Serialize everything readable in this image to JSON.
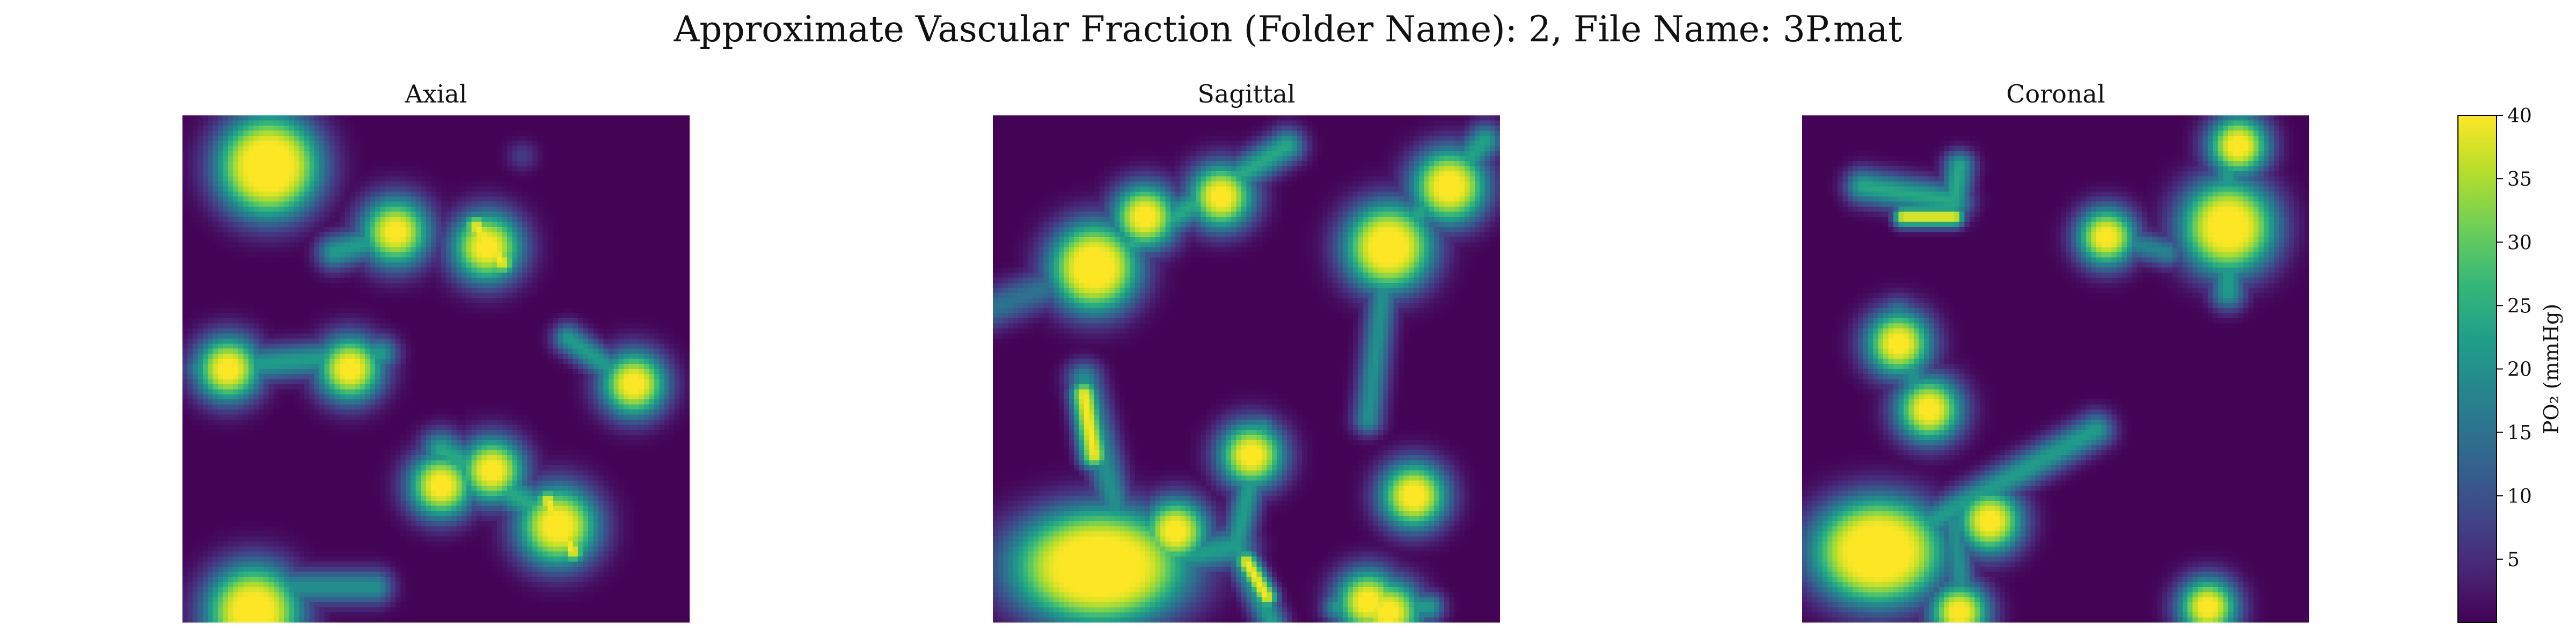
{
  "title": "Approximate Vascular Fraction (Folder Name): 2, File Name: 3P.mat",
  "colormap": {
    "name": "viridis",
    "stops": [
      "#440154",
      "#482878",
      "#3e4a89",
      "#31688e",
      "#26828e",
      "#1f9e89",
      "#35b779",
      "#6ece58",
      "#b5de2b",
      "#fde725"
    ]
  },
  "chart_data": [
    {
      "type": "heatmap",
      "title": "Axial",
      "value_range": [
        0,
        40
      ],
      "background_value": 0.3,
      "vessels": [
        {
          "x": 0.17,
          "y": 0.1,
          "r": 0.04,
          "peak": 40,
          "spread": 0.07
        },
        {
          "x": 0.67,
          "y": 0.08,
          "r": 0.0,
          "peak": 7,
          "spread": 0.03
        },
        {
          "x": 0.42,
          "y": 0.23,
          "r": 0.01,
          "peak": 40,
          "spread": 0.06
        },
        {
          "x": 0.6,
          "y": 0.26,
          "r": 0.012,
          "peak": 40,
          "spread": 0.06
        },
        {
          "x": 0.09,
          "y": 0.5,
          "r": 0.012,
          "peak": 40,
          "spread": 0.055
        },
        {
          "x": 0.33,
          "y": 0.5,
          "r": 0.012,
          "peak": 40,
          "spread": 0.055
        },
        {
          "x": 0.89,
          "y": 0.53,
          "r": 0.012,
          "peak": 40,
          "spread": 0.055
        },
        {
          "x": 0.51,
          "y": 0.73,
          "r": 0.012,
          "peak": 40,
          "spread": 0.055
        },
        {
          "x": 0.61,
          "y": 0.7,
          "r": 0.012,
          "peak": 40,
          "spread": 0.055
        },
        {
          "x": 0.74,
          "y": 0.81,
          "r": 0.018,
          "peak": 40,
          "spread": 0.065
        },
        {
          "x": 0.14,
          "y": 0.98,
          "r": 0.03,
          "peak": 40,
          "spread": 0.07
        }
      ],
      "segments": [
        {
          "x1": 0.3,
          "y1": 0.27,
          "x2": 0.44,
          "y2": 0.23,
          "peak": 22,
          "spread": 0.035
        },
        {
          "x1": 0.58,
          "y1": 0.22,
          "x2": 0.63,
          "y2": 0.29,
          "peak": 40,
          "spread": 0.028
        },
        {
          "x1": 0.04,
          "y1": 0.5,
          "x2": 0.39,
          "y2": 0.47,
          "peak": 22,
          "spread": 0.035
        },
        {
          "x1": 0.76,
          "y1": 0.44,
          "x2": 0.9,
          "y2": 0.54,
          "peak": 22,
          "spread": 0.03
        },
        {
          "x1": 0.51,
          "y1": 0.66,
          "x2": 0.74,
          "y2": 0.8,
          "peak": 24,
          "spread": 0.04
        },
        {
          "x1": 0.72,
          "y1": 0.76,
          "x2": 0.77,
          "y2": 0.86,
          "peak": 40,
          "spread": 0.025
        },
        {
          "x1": 0.1,
          "y1": 0.93,
          "x2": 0.38,
          "y2": 0.93,
          "peak": 20,
          "spread": 0.035
        }
      ]
    },
    {
      "type": "heatmap",
      "title": "Sagittal",
      "value_range": [
        0,
        40
      ],
      "background_value": 0.3,
      "vessels": [
        {
          "x": 0.2,
          "y": 0.3,
          "r": 0.03,
          "peak": 40,
          "spread": 0.065
        },
        {
          "x": 0.3,
          "y": 0.2,
          "r": 0.012,
          "peak": 40,
          "spread": 0.055
        },
        {
          "x": 0.45,
          "y": 0.16,
          "r": 0.012,
          "peak": 40,
          "spread": 0.055
        },
        {
          "x": 0.78,
          "y": 0.26,
          "r": 0.028,
          "peak": 40,
          "spread": 0.065
        },
        {
          "x": 0.9,
          "y": 0.14,
          "r": 0.018,
          "peak": 40,
          "spread": 0.06
        },
        {
          "x": 0.51,
          "y": 0.67,
          "r": 0.012,
          "peak": 40,
          "spread": 0.055
        },
        {
          "x": 0.36,
          "y": 0.82,
          "r": 0.012,
          "peak": 40,
          "spread": 0.055
        },
        {
          "x": 0.83,
          "y": 0.75,
          "r": 0.014,
          "peak": 40,
          "spread": 0.055
        },
        {
          "x": 0.74,
          "y": 0.96,
          "r": 0.012,
          "peak": 40,
          "spread": 0.055
        },
        {
          "x": 0.78,
          "y": 0.98,
          "r": 0.012,
          "peak": 40,
          "spread": 0.055
        }
      ],
      "ellipses": [
        {
          "x": 0.21,
          "y": 0.89,
          "rx": 0.075,
          "ry": 0.05,
          "peak": 40,
          "spread": 0.075
        }
      ],
      "segments": [
        {
          "x1": 0.2,
          "y1": 0.3,
          "x2": 0.58,
          "y2": 0.06,
          "peak": 24,
          "spread": 0.035
        },
        {
          "x1": 0.43,
          "y1": 0.15,
          "x2": 0.46,
          "y2": 0.18,
          "peak": 40,
          "spread": 0.025
        },
        {
          "x1": 0.0,
          "y1": 0.38,
          "x2": 0.13,
          "y2": 0.33,
          "peak": 15,
          "spread": 0.04
        },
        {
          "x1": 0.78,
          "y1": 0.26,
          "x2": 0.97,
          "y2": 0.05,
          "peak": 23,
          "spread": 0.035
        },
        {
          "x1": 0.78,
          "y1": 0.26,
          "x2": 0.74,
          "y2": 0.6,
          "peak": 20,
          "spread": 0.03
        },
        {
          "x1": 0.18,
          "y1": 0.55,
          "x2": 0.2,
          "y2": 0.67,
          "peak": 40,
          "spread": 0.028
        },
        {
          "x1": 0.18,
          "y1": 0.52,
          "x2": 0.26,
          "y2": 0.85,
          "peak": 20,
          "spread": 0.035
        },
        {
          "x1": 0.1,
          "y1": 0.92,
          "x2": 0.48,
          "y2": 0.85,
          "peak": 22,
          "spread": 0.04
        },
        {
          "x1": 0.48,
          "y1": 0.85,
          "x2": 0.53,
          "y2": 0.62,
          "peak": 22,
          "spread": 0.03
        },
        {
          "x1": 0.48,
          "y1": 0.85,
          "x2": 0.55,
          "y2": 1.0,
          "peak": 22,
          "spread": 0.03
        },
        {
          "x1": 0.5,
          "y1": 0.88,
          "x2": 0.54,
          "y2": 0.95,
          "peak": 40,
          "spread": 0.022
        },
        {
          "x1": 0.68,
          "y1": 0.97,
          "x2": 0.86,
          "y2": 0.97,
          "peak": 22,
          "spread": 0.03
        }
      ]
    },
    {
      "type": "heatmap",
      "title": "Coronal",
      "value_range": [
        0,
        40
      ],
      "background_value": 0.3,
      "vessels": [
        {
          "x": 0.84,
          "y": 0.22,
          "r": 0.03,
          "peak": 40,
          "spread": 0.07
        },
        {
          "x": 0.86,
          "y": 0.06,
          "r": 0.012,
          "peak": 40,
          "spread": 0.05
        },
        {
          "x": 0.6,
          "y": 0.24,
          "r": 0.01,
          "peak": 40,
          "spread": 0.05
        },
        {
          "x": 0.19,
          "y": 0.45,
          "r": 0.012,
          "peak": 40,
          "spread": 0.055
        },
        {
          "x": 0.25,
          "y": 0.58,
          "r": 0.012,
          "peak": 40,
          "spread": 0.055
        },
        {
          "x": 0.37,
          "y": 0.8,
          "r": 0.012,
          "peak": 40,
          "spread": 0.055
        },
        {
          "x": 0.8,
          "y": 0.97,
          "r": 0.01,
          "peak": 40,
          "spread": 0.05
        },
        {
          "x": 0.31,
          "y": 0.98,
          "r": 0.01,
          "peak": 40,
          "spread": 0.05
        }
      ],
      "ellipses": [
        {
          "x": 0.15,
          "y": 0.86,
          "rx": 0.055,
          "ry": 0.045,
          "peak": 40,
          "spread": 0.07
        }
      ],
      "segments": [
        {
          "x1": 0.12,
          "y1": 0.14,
          "x2": 0.3,
          "y2": 0.17,
          "peak": 24,
          "spread": 0.035
        },
        {
          "x1": 0.2,
          "y1": 0.2,
          "x2": 0.3,
          "y2": 0.2,
          "peak": 40,
          "spread": 0.02
        },
        {
          "x1": 0.3,
          "y1": 0.17,
          "x2": 0.31,
          "y2": 0.1,
          "peak": 24,
          "spread": 0.03
        },
        {
          "x1": 0.56,
          "y1": 0.23,
          "x2": 0.72,
          "y2": 0.27,
          "peak": 18,
          "spread": 0.03
        },
        {
          "x1": 0.84,
          "y1": 0.06,
          "x2": 0.84,
          "y2": 0.35,
          "peak": 22,
          "spread": 0.035
        },
        {
          "x1": 0.19,
          "y1": 0.4,
          "x2": 0.24,
          "y2": 0.6,
          "peak": 20,
          "spread": 0.04
        },
        {
          "x1": 0.15,
          "y1": 0.86,
          "x2": 0.58,
          "y2": 0.62,
          "peak": 22,
          "spread": 0.035
        },
        {
          "x1": 0.3,
          "y1": 0.8,
          "x2": 0.32,
          "y2": 1.0,
          "peak": 20,
          "spread": 0.03
        }
      ]
    }
  ],
  "colorbar": {
    "label": "PO₂ (mmHg)",
    "ticks": [
      5,
      10,
      15,
      20,
      25,
      30,
      35,
      40
    ],
    "range": [
      0,
      40
    ]
  }
}
